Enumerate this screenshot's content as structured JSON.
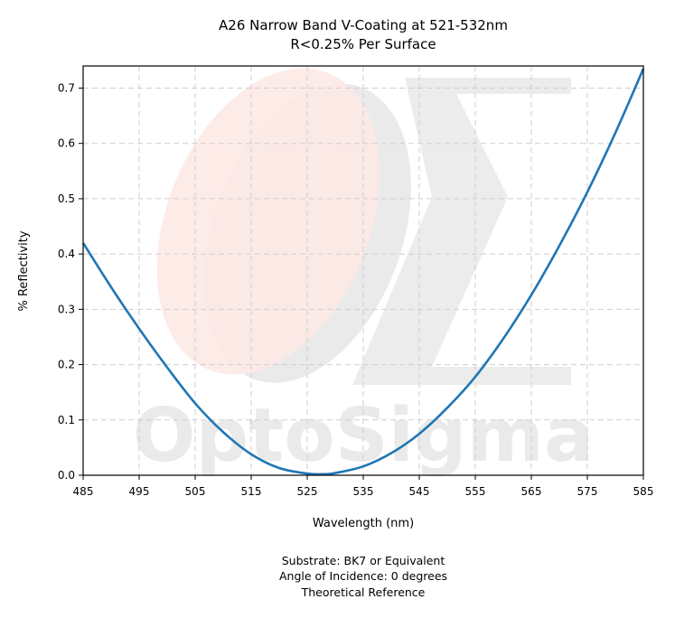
{
  "watermark": {
    "brand_text": "OptoSigma"
  },
  "chart_data": {
    "type": "line",
    "title": "A26 Narrow Band V-Coating at 521-532nm",
    "subtitle": "R<0.25% Per Surface",
    "xlabel": "Wavelength (nm)",
    "ylabel": "% Reflectivity",
    "xlim": [
      485,
      585
    ],
    "ylim": [
      0.0,
      0.74
    ],
    "x_ticks": [
      485,
      495,
      505,
      515,
      525,
      535,
      545,
      555,
      565,
      575,
      585
    ],
    "y_ticks": [
      0.0,
      0.1,
      0.2,
      0.3,
      0.4,
      0.5,
      0.6,
      0.7
    ],
    "y_tick_labels": [
      "0.0",
      "0.1",
      "0.2",
      "0.3",
      "0.4",
      "0.5",
      "0.6",
      "0.7"
    ],
    "grid": true,
    "series": [
      {
        "color": "#1f77b4",
        "x": [
          485,
          490,
          495,
          500,
          505,
          510,
          515,
          520,
          525,
          528,
          530,
          535,
          540,
          545,
          550,
          555,
          560,
          565,
          570,
          575,
          580,
          585
        ],
        "y": [
          0.42,
          0.34,
          0.265,
          0.195,
          0.13,
          0.078,
          0.038,
          0.013,
          0.003,
          0.002,
          0.004,
          0.016,
          0.04,
          0.075,
          0.122,
          0.178,
          0.247,
          0.326,
          0.415,
          0.512,
          0.619,
          0.735
        ]
      }
    ],
    "footnotes": [
      "Substrate: BK7 or Equivalent",
      "Angle of Incidence: 0 degrees",
      "Theoretical Reference"
    ]
  }
}
